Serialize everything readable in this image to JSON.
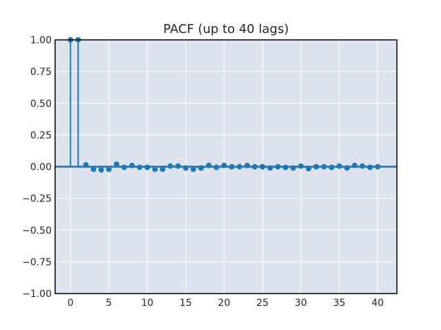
{
  "chart_data": {
    "type": "scatter",
    "subtype": "stem",
    "title": "PACF (up to 40 lags)",
    "xlabel": "",
    "ylabel": "",
    "xlim": [
      -2,
      42.5
    ],
    "ylim": [
      -1.0,
      1.0
    ],
    "grid": true,
    "x_ticks": [
      0,
      5,
      10,
      15,
      20,
      25,
      30,
      35,
      40
    ],
    "x_tick_labels": [
      "0",
      "5",
      "10",
      "15",
      "20",
      "25",
      "30",
      "35",
      "40"
    ],
    "y_ticks": [
      1.0,
      0.75,
      0.5,
      0.25,
      0.0,
      -0.25,
      -0.5,
      -0.75,
      -1.0
    ],
    "y_tick_labels": [
      "1.00",
      "0.75",
      "0.50",
      "0.25",
      "0.00",
      "−0.25",
      "−0.50",
      "−0.75",
      "−1.00"
    ],
    "confidence_band": 0.01,
    "series": [
      {
        "x": [
          0,
          1,
          2,
          3,
          4,
          5,
          6,
          7,
          8,
          9,
          10,
          11,
          12,
          13,
          14,
          15,
          16,
          17,
          18,
          19,
          20,
          21,
          22,
          23,
          24,
          25,
          26,
          27,
          28,
          29,
          30,
          31,
          32,
          33,
          34,
          35,
          36,
          37,
          38,
          39,
          40
        ],
        "values": [
          1.0,
          1.0,
          0.015,
          -0.02,
          -0.025,
          -0.02,
          0.02,
          -0.005,
          0.01,
          -0.005,
          -0.005,
          -0.02,
          -0.02,
          0.005,
          0.005,
          -0.01,
          -0.02,
          -0.01,
          0.01,
          -0.005,
          0.01,
          0.0,
          0.0,
          0.01,
          0.0,
          0.0,
          -0.01,
          0.0,
          -0.005,
          -0.01,
          0.005,
          -0.015,
          0.0,
          0.0,
          -0.005,
          0.005,
          -0.01,
          0.01,
          0.005,
          -0.005,
          0.0
        ]
      }
    ],
    "colors": {
      "stem": "#1f77b4",
      "band": "#1f77b4",
      "plot_bg": "#dde3ee",
      "grid": "#ffffff",
      "axes": "#000000",
      "text": "#262626"
    }
  }
}
